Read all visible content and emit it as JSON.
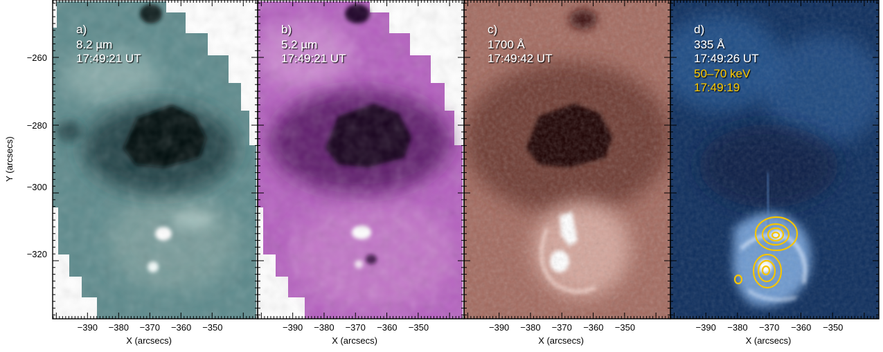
{
  "figure": {
    "y_axis_label": "Y (arcsecs)",
    "x_axis_label": "X (arcsecs)",
    "x_ticks": [
      "−390",
      "−380",
      "−370",
      "−360",
      "−350"
    ],
    "y_ticks": [
      "−260",
      "−280",
      "−300",
      "−320"
    ]
  },
  "panels": [
    {
      "id": "a",
      "lines": [
        "a)",
        "8.2 µm",
        "17:49:21 UT"
      ],
      "line_colors": [
        "#ffffff",
        "#ffffff",
        "#ffffff"
      ],
      "colormap": {
        "dark": "#061015",
        "mid": "#3e6f73",
        "light": "#eef6f5"
      }
    },
    {
      "id": "b",
      "lines": [
        "b)",
        "5.2 µm",
        "17:49:21 UT"
      ],
      "line_colors": [
        "#ffffff",
        "#ffffff",
        "#ffffff"
      ],
      "colormap": {
        "dark": "#1a0320",
        "mid": "#a148ad",
        "light": "#f7e3f6"
      }
    },
    {
      "id": "c",
      "lines": [
        "c)",
        "1700 Å",
        "17:49:42 UT"
      ],
      "line_colors": [
        "#ffffff",
        "#ffffff",
        "#ffffff"
      ],
      "colormap": {
        "dark": "#1c0504",
        "mid": "#a46a5e",
        "light": "#fbe9e3"
      }
    },
    {
      "id": "d",
      "lines": [
        "d)",
        "335 Å",
        "17:49:26 UT",
        "50–70 keV",
        "17:49:19"
      ],
      "line_colors": [
        "#ffffff",
        "#ffffff",
        "#ffffff",
        "#f5c400",
        "#f5c400"
      ],
      "colormap": {
        "dark": "#010a1c",
        "mid": "#1a4a82",
        "light": "#e3f0ff"
      },
      "contour_color": "#f5c400"
    }
  ]
}
